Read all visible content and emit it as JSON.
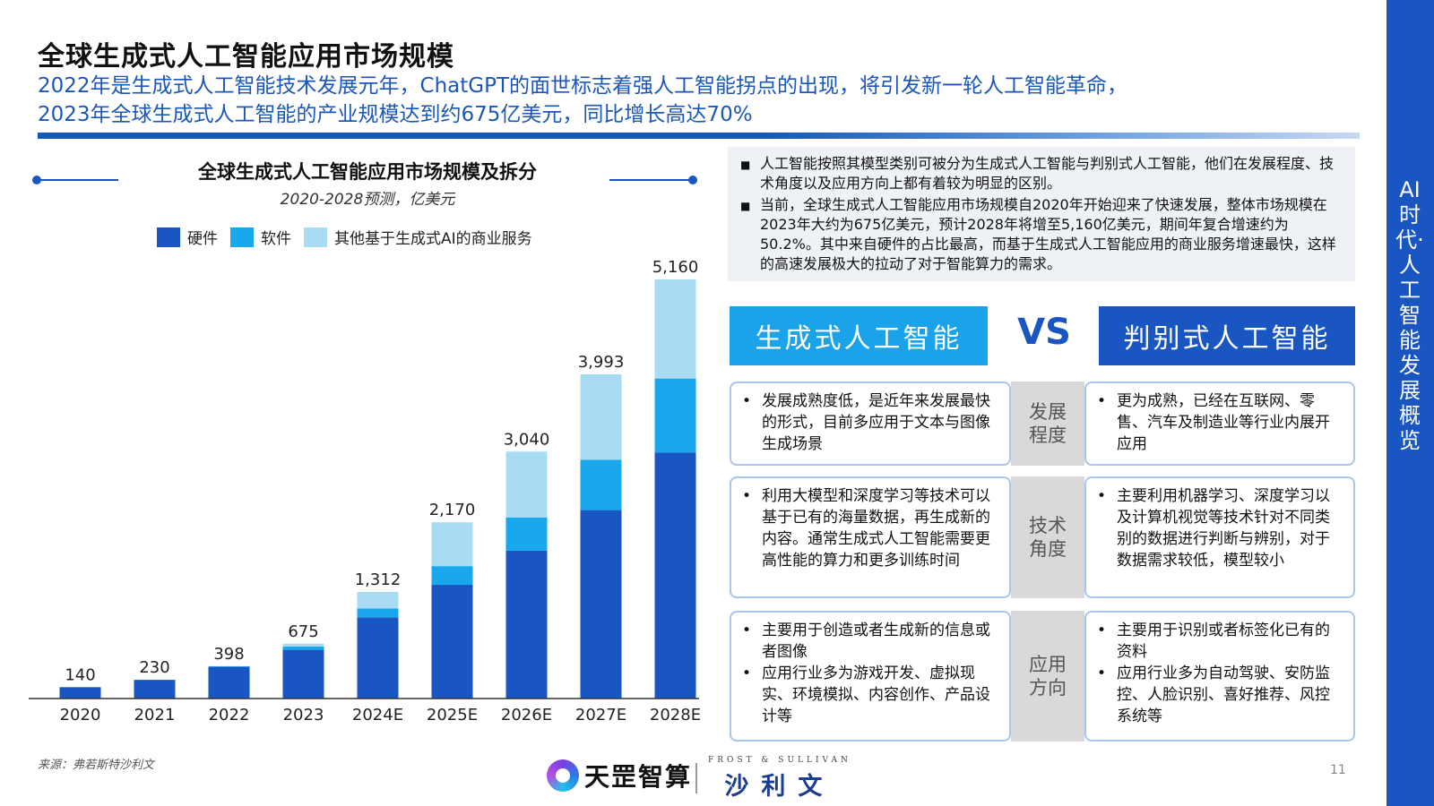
{
  "header": {
    "title": "全球生成式人工智能应用市场规模",
    "subtitle_line1": "2022年是生成式人工智能技术发展元年，ChatGPT的面世标志着强人工智能拐点的出现，将引发新一轮人工智能革命，",
    "subtitle_line2": "2023年全球生成式人工智能的产业规模达到约675亿美元，同比增长高达70%"
  },
  "side_band_text": "AI时代·人工智能发展概览",
  "chart_data": {
    "type": "bar",
    "stacked": true,
    "title": "全球生成式人工智能应用市场规模及拆分",
    "subtitle": "2020-2028预测，亿美元",
    "categories": [
      "2020",
      "2021",
      "2022",
      "2023",
      "2024E",
      "2025E",
      "2026E",
      "2027E",
      "2028E"
    ],
    "totals": [
      140,
      230,
      398,
      675,
      1312,
      2170,
      3040,
      3993,
      5160
    ],
    "total_labels": [
      "140",
      "230",
      "398",
      "675",
      "1,312",
      "2,170",
      "3,040",
      "3,993",
      "5,160"
    ],
    "series": [
      {
        "name": "硬件",
        "color": "#1a56c2",
        "values": [
          140,
          230,
          390,
          600,
          1000,
          1400,
          1820,
          2320,
          3030
        ]
      },
      {
        "name": "软件",
        "color": "#19a8ec",
        "values": [
          0,
          0,
          8,
          40,
          110,
          230,
          410,
          620,
          910
        ]
      },
      {
        "name": "其他基于生成式AI的商业服务",
        "color": "#a9dcf3",
        "values": [
          0,
          0,
          0,
          35,
          202,
          540,
          810,
          1053,
          1220
        ]
      }
    ],
    "ylim": [
      0,
      5160
    ],
    "legend": "top",
    "grid": false
  },
  "source": "来源：弗若斯特沙利文",
  "notes": [
    "人工智能按照其模型类别可被分为生成式人工智能与判别式人工智能，他们在发展程度、技术角度以及应用方向上都有着较为明显的区别。",
    "当前，全球生成式人工智能应用市场规模自2020年开始迎来了快速发展，整体市场规模在2023年大约为675亿美元，预计2028年将增至5,160亿美元，期间年复合增速约为50.2%。其中来自硬件的占比最高，而基于生成式人工智能应用的商业服务增速最快，这样的高速发展极大的拉动了对于智能算力的需求。"
  ],
  "comparison": {
    "left_header": "生成式人工智能",
    "vs": "VS",
    "right_header": "判别式人工智能",
    "rows": [
      {
        "label": "发展程度",
        "left": [
          "发展成熟度低，是近年来发展最快的形式，目前多应用于文本与图像生成场景"
        ],
        "right": [
          "更为成熟，已经在互联网、零售、汽车及制造业等行业内展开应用"
        ]
      },
      {
        "label": "技术角度",
        "left": [
          "利用大模型和深度学习等技术可以基于已有的海量数据，再生成新的内容。通常生成式人工智能需要更高性能的算力和更多训练时间"
        ],
        "right": [
          "主要利用机器学习、深度学习以及计算机视觉等技术针对不同类别的数据进行判断与辨别，对于数据需求较低，模型较小"
        ]
      },
      {
        "label": "应用方向",
        "left": [
          "主要用于创造或者生成新的信息或者图像",
          "应用行业多为游戏开发、虚拟现实、环境模拟、内容创作、产品设计等"
        ],
        "right": [
          "主要用于识别或者标签化已有的资料",
          "应用行业多为自动驾驶、安防监控、人脸识别、喜好推荐、风控系统等"
        ]
      }
    ]
  },
  "footer": {
    "logo_name": "天罡智算",
    "fs_english": "FROST & SULLIVAN",
    "fs_chinese": "沙利文",
    "page_number": "11"
  }
}
